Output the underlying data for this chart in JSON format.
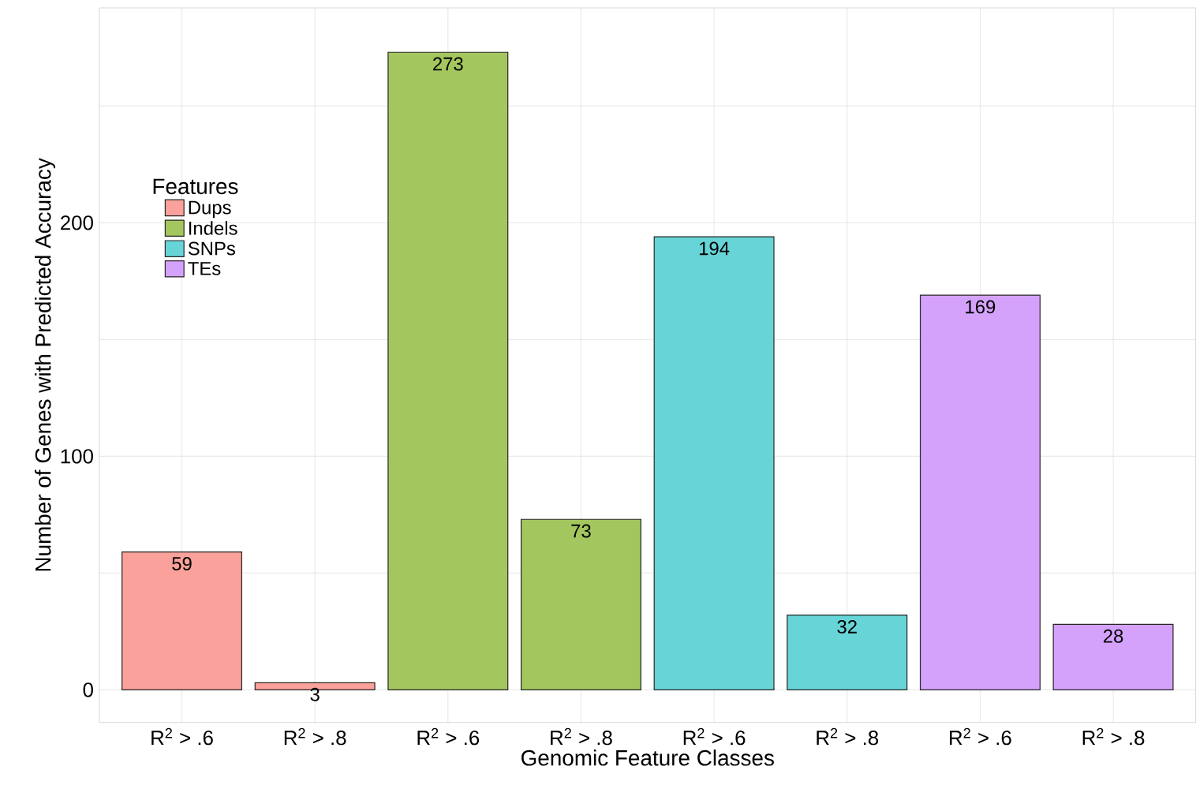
{
  "chart_data": {
    "type": "bar",
    "xlabel": "Genomic Feature Classes",
    "ylabel": "Number of Genes with Predicted Accuracy",
    "legend_title": "Features",
    "categories": [
      "R$^{2}$ > .6",
      "R$^{2}$ > .8",
      "R$^{2}$ > .6",
      "R$^{2}$ > .8",
      "R$^{2}$ > .6",
      "R$^{2}$ > .8",
      "R$^{2}$ > .6",
      "R$^{2}$ > .8"
    ],
    "series": [
      {
        "name": "Dups",
        "color": "#f9a19a",
        "values": [
          59,
          3,
          null,
          null,
          null,
          null,
          null,
          null
        ]
      },
      {
        "name": "Indels",
        "color": "#a3c75e",
        "values": [
          null,
          null,
          273,
          73,
          null,
          null,
          null,
          null
        ]
      },
      {
        "name": "SNPs",
        "color": "#67d5d7",
        "values": [
          null,
          null,
          null,
          null,
          194,
          32,
          null,
          null
        ]
      },
      {
        "name": "TEs",
        "color": "#d5a2fb",
        "values": [
          null,
          null,
          null,
          null,
          null,
          null,
          169,
          28
        ]
      }
    ],
    "ylim": [
      -14,
      292
    ],
    "yticks": [
      0,
      {
        "value": 50,
        "label": null
      },
      100,
      {
        "value": 150,
        "label": null
      },
      200,
      {
        "value": 250,
        "label": null
      }
    ],
    "grid": true,
    "legend": "top left",
    "data_labels": true
  }
}
